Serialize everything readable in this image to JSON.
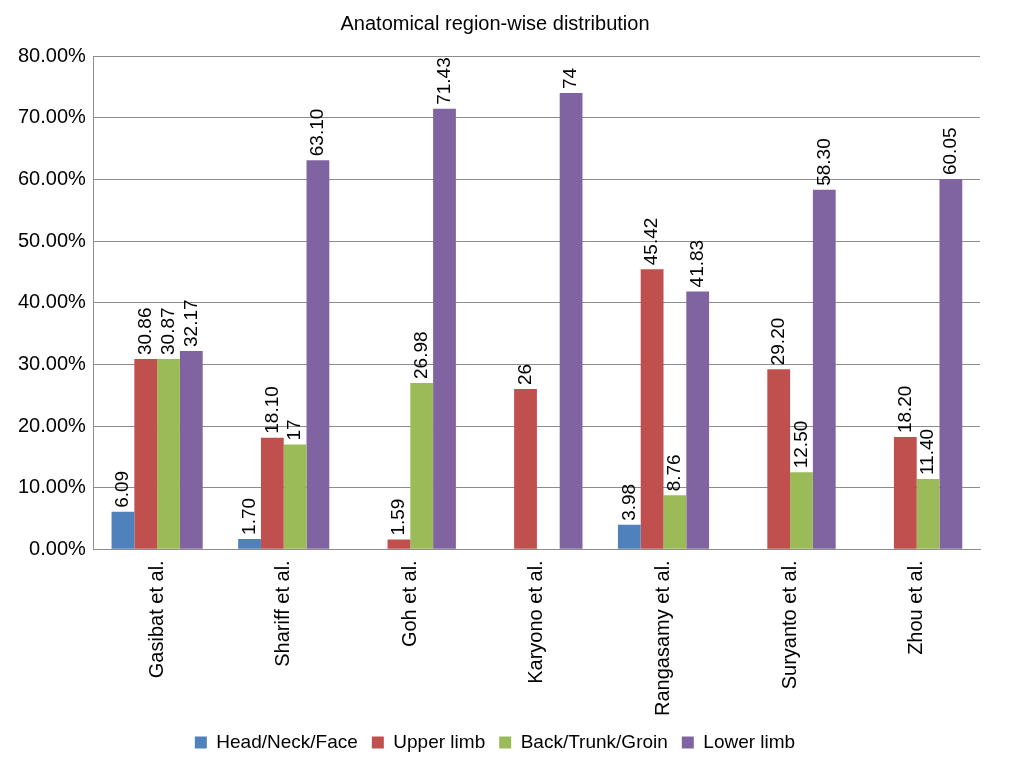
{
  "chart_data": {
    "type": "bar",
    "title": "Anatomical region-wise distribution",
    "categories": [
      "Gasibat et al.",
      "Shariff et al.",
      "Goh et al.",
      "Karyono et al.",
      "Rangasamy et al.",
      "Suryanto et al.",
      "Zhou et al."
    ],
    "series": [
      {
        "name": "Head/Neck/Face",
        "color": "#4f81bd",
        "values": [
          6.09,
          1.7,
          null,
          null,
          3.98,
          null,
          null
        ],
        "value_labels": [
          "6.09",
          "1.70",
          null,
          null,
          "3.98",
          null,
          null
        ]
      },
      {
        "name": "Upper limb",
        "color": "#c0504d",
        "values": [
          30.86,
          18.1,
          1.59,
          26,
          45.42,
          29.2,
          18.2
        ],
        "value_labels": [
          "30.86",
          "18.10",
          "1.59",
          "26",
          "45.42",
          "29.20",
          "18.20"
        ]
      },
      {
        "name": "Back/Trunk/Groin",
        "color": "#9bbb59",
        "values": [
          30.87,
          17,
          26.98,
          null,
          8.76,
          12.5,
          11.4
        ],
        "value_labels": [
          "30.87",
          "17",
          "26.98",
          null,
          "8.76",
          "12.50",
          "11.40"
        ]
      },
      {
        "name": "Lower limb",
        "color": "#8064a2",
        "values": [
          32.17,
          63.1,
          71.43,
          74,
          41.83,
          58.3,
          60.05
        ],
        "value_labels": [
          "32.17",
          "63.10",
          "71.43",
          "74",
          "41.83",
          "58.30",
          "60.05"
        ]
      }
    ],
    "ylim": [
      0,
      80
    ],
    "yticks": [
      {
        "value": 0,
        "label": "0.00%"
      },
      {
        "value": 10,
        "label": "10.00%"
      },
      {
        "value": 20,
        "label": "20.00%"
      },
      {
        "value": 30,
        "label": "30.00%"
      },
      {
        "value": 40,
        "label": "40.00%"
      },
      {
        "value": 50,
        "label": "50.00%"
      },
      {
        "value": 60,
        "label": "60.00%"
      },
      {
        "value": 70,
        "label": "70.00%"
      },
      {
        "value": 80,
        "label": "80.00%"
      }
    ],
    "grid": true,
    "legend": "bottom",
    "data_labels": true
  }
}
